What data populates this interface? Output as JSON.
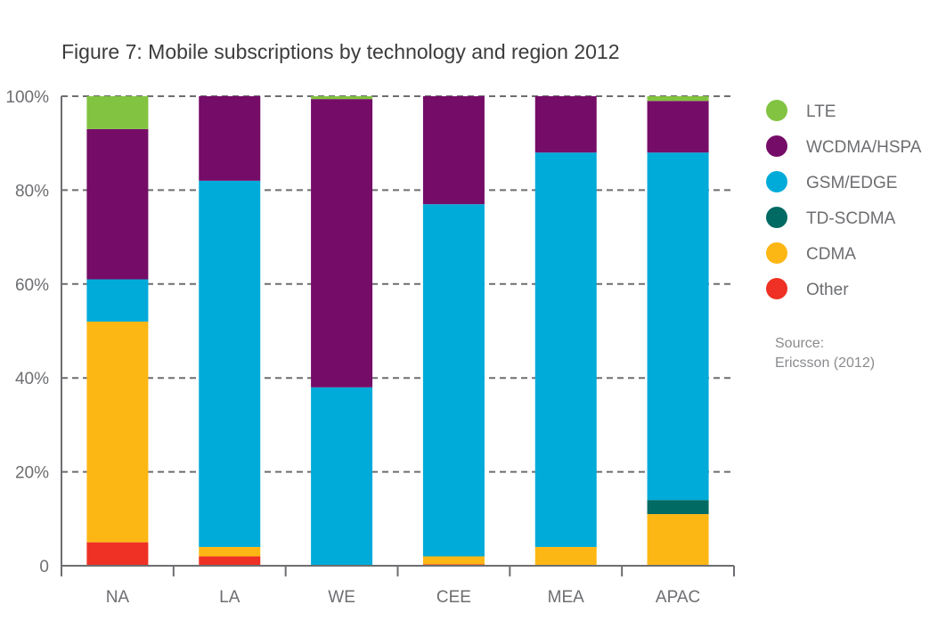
{
  "chart_data": {
    "type": "bar",
    "stacked": true,
    "title": "Figure 7: Mobile subscriptions by technology and region 2012",
    "xlabel": "",
    "ylabel": "",
    "ylim": [
      0,
      100
    ],
    "y_ticks": [
      0,
      20,
      40,
      60,
      80,
      100
    ],
    "y_tick_labels": [
      "0",
      "20%",
      "40%",
      "60%",
      "80%",
      "100%"
    ],
    "grid": "horizontal dashed",
    "legend_position": "right",
    "categories": [
      "NA",
      "LA",
      "WE",
      "CEE",
      "MEA",
      "APAC"
    ],
    "series": [
      {
        "name": "Other",
        "color": "#ee3124",
        "values": [
          5,
          2,
          0,
          0.3,
          0,
          0
        ]
      },
      {
        "name": "CDMA",
        "color": "#fdb714",
        "values": [
          47,
          2,
          0,
          1.7,
          4,
          11
        ]
      },
      {
        "name": "TD-SCDMA",
        "color": "#006a63",
        "values": [
          0,
          0,
          0,
          0,
          0,
          3
        ]
      },
      {
        "name": "GSM/EDGE",
        "color": "#00abd9",
        "values": [
          9,
          78,
          38,
          75,
          84,
          74
        ]
      },
      {
        "name": "WCDMA/HSPA",
        "color": "#750c68",
        "values": [
          32,
          18,
          61.4,
          23,
          12,
          11
        ]
      },
      {
        "name": "LTE",
        "color": "#82c341",
        "values": [
          7,
          0,
          0.6,
          0,
          0,
          1
        ]
      }
    ],
    "legend_order": [
      "LTE",
      "WCDMA/HSPA",
      "GSM/EDGE",
      "TD-SCDMA",
      "CDMA",
      "Other"
    ],
    "source_lines": [
      "Source:",
      "Ericsson (2012)"
    ]
  }
}
